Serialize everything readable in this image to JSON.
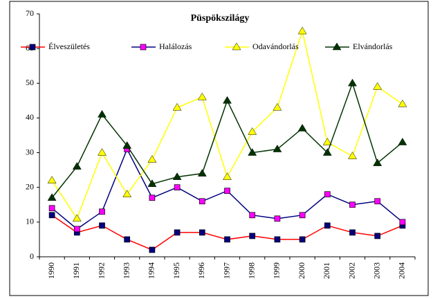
{
  "chart_data": {
    "type": "line",
    "title": "Püspökszilágy",
    "categories": [
      "1990",
      "1991",
      "1992",
      "1993",
      "1994",
      "1995",
      "1996",
      "1997",
      "1998",
      "1999",
      "2000",
      "2001",
      "2002",
      "2003",
      "2004"
    ],
    "series": [
      {
        "name": "Élveszületés",
        "color": "#ff0000",
        "marker": "square",
        "marker_color": "#000080",
        "values": [
          12,
          7,
          9,
          5,
          2,
          7,
          7,
          5,
          6,
          5,
          5,
          9,
          7,
          6,
          9
        ]
      },
      {
        "name": "Halálozás",
        "color": "#000080",
        "marker": "square",
        "marker_color": "#ff00ff",
        "values": [
          14,
          8,
          13,
          31,
          17,
          20,
          16,
          19,
          12,
          11,
          12,
          18,
          15,
          16,
          10
        ]
      },
      {
        "name": "Odavándorlás",
        "color": "#ffff00",
        "marker": "triangle",
        "marker_color": "#ffff00",
        "values": [
          22,
          11,
          30,
          18,
          28,
          43,
          46,
          23,
          36,
          43,
          65,
          33,
          29,
          49,
          44
        ]
      },
      {
        "name": "Elvándorlás",
        "color": "#003300",
        "marker": "triangle",
        "marker_color": "#003300",
        "values": [
          17,
          26,
          41,
          32,
          21,
          23,
          24,
          45,
          30,
          31,
          37,
          30,
          50,
          27,
          33
        ]
      }
    ],
    "ylim": [
      0,
      70
    ],
    "yticks": [
      0,
      10,
      20,
      30,
      40,
      50,
      60,
      70
    ],
    "legend": "top"
  }
}
